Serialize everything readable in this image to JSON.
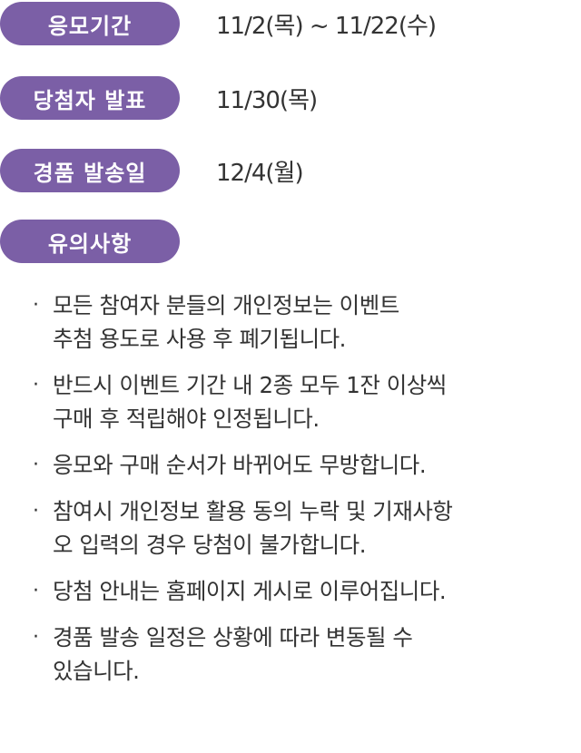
{
  "schedule": [
    {
      "label": "응모기간",
      "value": "11/2(목) ~ 11/22(수)"
    },
    {
      "label": "당첨자 발표",
      "value": "11/30(목)"
    },
    {
      "label": "경품 발송일",
      "value": "12/4(월)"
    }
  ],
  "notice": {
    "label": "유의사항",
    "bullet": "·",
    "items": [
      {
        "lines": [
          "모든 참여자 분들의 개인정보는 이벤트",
          "추첨 용도로 사용 후 폐기됩니다."
        ]
      },
      {
        "lines": [
          "반드시 이벤트 기간 내 2종 모두 1잔 이상씩",
          "구매 후 적립해야 인정됩니다."
        ]
      },
      {
        "lines": [
          "응모와 구매 순서가 바뀌어도 무방합니다."
        ]
      },
      {
        "lines": [
          "참여시 개인정보 활용 동의 누락 및 기재사항",
          "오 입력의 경우 당첨이 불가합니다."
        ]
      },
      {
        "lines": [
          "당첨 안내는 홈페이지 게시로 이루어집니다."
        ]
      },
      {
        "lines": [
          "경품 발송 일정은 상황에 따라 변동될 수",
          "있습니다."
        ]
      }
    ]
  },
  "colors": {
    "pill_background": "#7b5fa6",
    "pill_text": "#ffffff",
    "body_text": "#333333"
  }
}
